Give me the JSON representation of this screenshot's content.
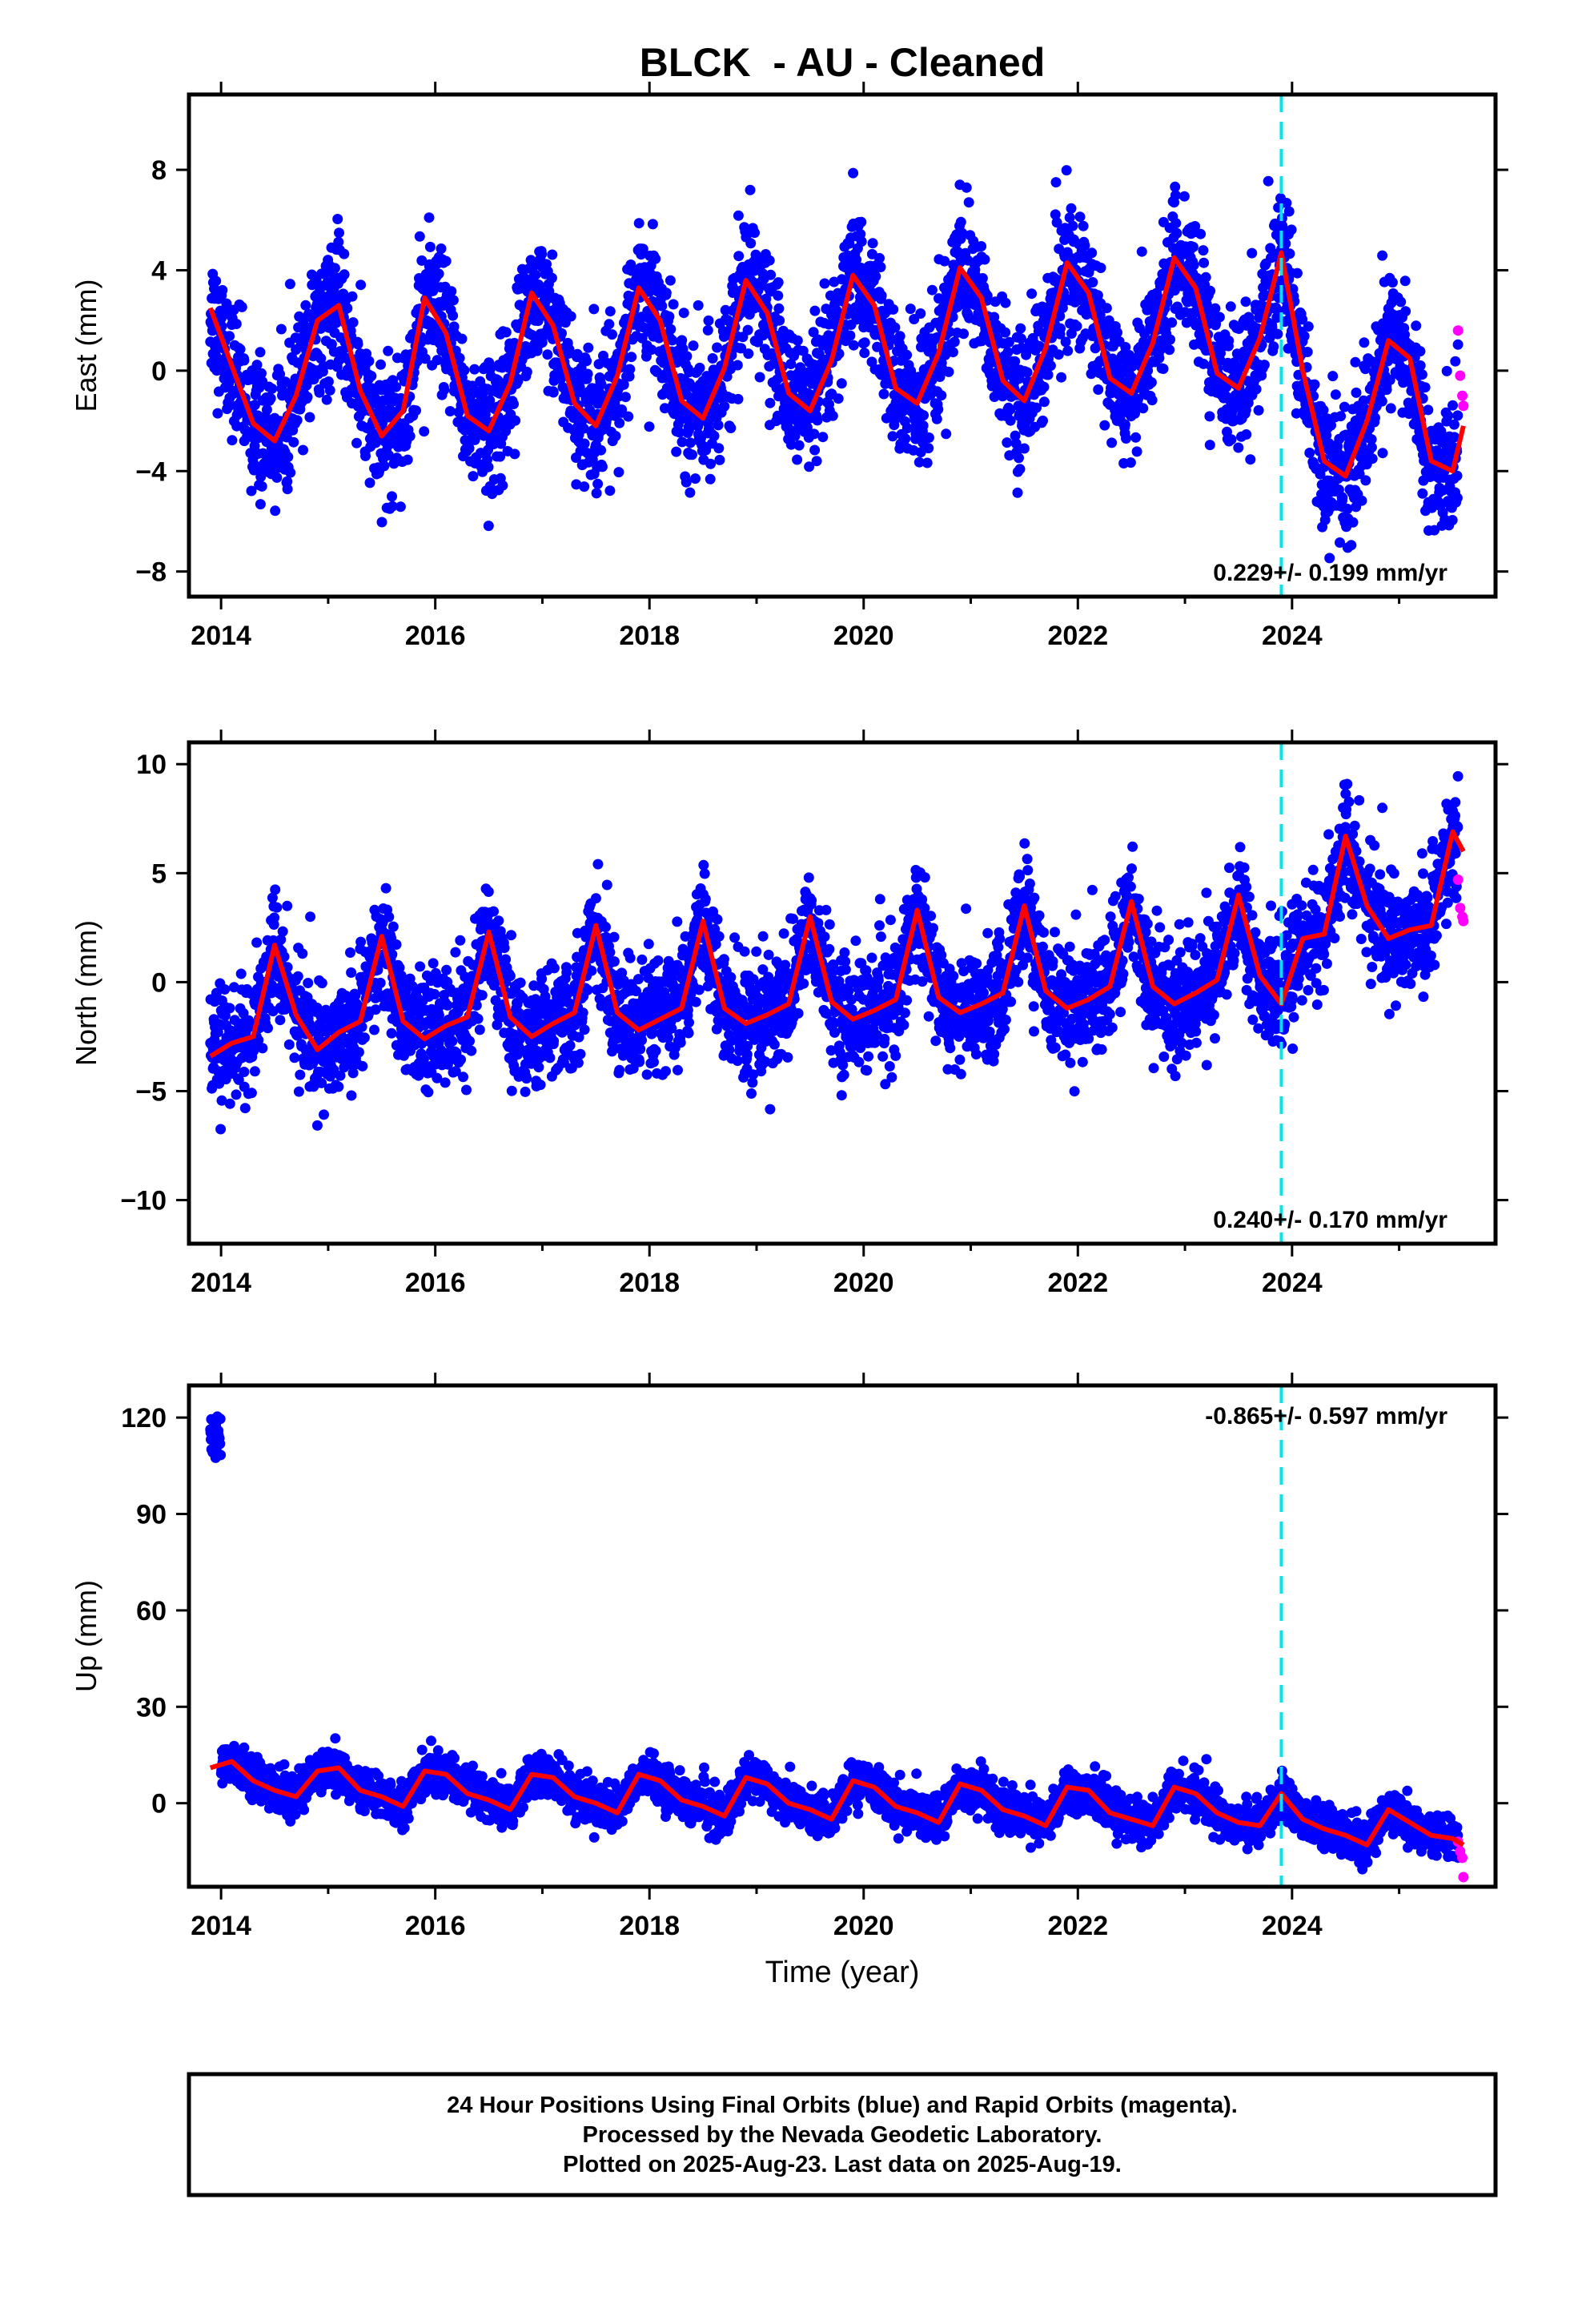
{
  "title": "BLCK  - AU - Cleaned",
  "x_axis_label": "Time (year)",
  "colors": {
    "final_orbits": "#0000ff",
    "rapid_orbits": "#ff00ff",
    "model_fit": "#ff0000",
    "event_line": "#00e5ee"
  },
  "event_year": 2023.9,
  "chart_data": [
    {
      "type": "scatter",
      "component": "east",
      "ylabel": "East (mm)",
      "xlim": [
        2013.7,
        2025.9
      ],
      "ylim": [
        -9,
        11
      ],
      "x_ticks": [
        2014,
        2016,
        2018,
        2020,
        2022,
        2024
      ],
      "y_ticks": [
        -8,
        -4,
        0,
        4,
        8
      ],
      "rate_label": "0.229+/- 0.199 mm/yr",
      "rate_position": "bottom-right",
      "model": {
        "x": [
          2013.9,
          2014.1,
          2014.3,
          2014.5,
          2014.7,
          2014.9,
          2015.1,
          2015.3,
          2015.5,
          2015.7,
          2015.9,
          2016.1,
          2016.3,
          2016.5,
          2016.7,
          2016.9,
          2017.1,
          2017.3,
          2017.5,
          2017.7,
          2017.9,
          2018.1,
          2018.3,
          2018.5,
          2018.7,
          2018.9,
          2019.1,
          2019.3,
          2019.5,
          2019.7,
          2019.9,
          2020.1,
          2020.3,
          2020.5,
          2020.7,
          2020.9,
          2021.1,
          2021.3,
          2021.5,
          2021.7,
          2021.9,
          2022.1,
          2022.3,
          2022.5,
          2022.7,
          2022.9,
          2023.1,
          2023.3,
          2023.5,
          2023.7,
          2023.9,
          2024.1,
          2024.3,
          2024.5,
          2024.7,
          2024.9,
          2025.1,
          2025.3,
          2025.5,
          2025.6
        ],
        "y": [
          2.5,
          0.2,
          -2.1,
          -2.8,
          -1.0,
          2.0,
          2.6,
          -0.8,
          -2.6,
          -1.6,
          2.9,
          1.5,
          -1.8,
          -2.4,
          -0.5,
          3.1,
          1.8,
          -1.3,
          -2.2,
          -0.2,
          3.3,
          2.0,
          -1.2,
          -1.9,
          0.1,
          3.6,
          2.3,
          -0.9,
          -1.6,
          0.4,
          3.8,
          2.6,
          -0.7,
          -1.3,
          0.7,
          4.1,
          2.9,
          -0.4,
          -1.2,
          0.9,
          4.3,
          3.1,
          -0.3,
          -0.9,
          1.1,
          4.5,
          3.3,
          -0.1,
          -0.7,
          1.3,
          4.7,
          0.0,
          -3.6,
          -4.2,
          -2.0,
          1.2,
          0.5,
          -3.6,
          -4.0,
          -2.2
        ]
      },
      "rapid": {
        "x": [
          2025.55,
          2025.57,
          2025.59,
          2025.6
        ],
        "y": [
          1.6,
          -0.2,
          -1.0,
          -1.4
        ]
      }
    },
    {
      "type": "scatter",
      "component": "north",
      "ylabel": "North (mm)",
      "xlim": [
        2013.7,
        2025.9
      ],
      "ylim": [
        -12,
        11
      ],
      "x_ticks": [
        2014,
        2016,
        2018,
        2020,
        2022,
        2024
      ],
      "y_ticks": [
        -10,
        -5,
        0,
        5,
        10
      ],
      "rate_label": "0.240+/- 0.170 mm/yr",
      "rate_position": "bottom-right",
      "model": {
        "x": [
          2013.9,
          2014.1,
          2014.3,
          2014.5,
          2014.7,
          2014.9,
          2015.1,
          2015.3,
          2015.5,
          2015.7,
          2015.9,
          2016.1,
          2016.3,
          2016.5,
          2016.7,
          2016.9,
          2017.1,
          2017.3,
          2017.5,
          2017.7,
          2017.9,
          2018.1,
          2018.3,
          2018.5,
          2018.7,
          2018.9,
          2019.1,
          2019.3,
          2019.5,
          2019.7,
          2019.9,
          2020.1,
          2020.3,
          2020.5,
          2020.7,
          2020.9,
          2021.1,
          2021.3,
          2021.5,
          2021.7,
          2021.9,
          2022.1,
          2022.3,
          2022.5,
          2022.7,
          2022.9,
          2023.1,
          2023.3,
          2023.5,
          2023.7,
          2023.9,
          2024.1,
          2024.3,
          2024.5,
          2024.7,
          2024.9,
          2025.1,
          2025.3,
          2025.5,
          2025.6
        ],
        "y": [
          -3.4,
          -2.8,
          -2.5,
          1.7,
          -1.5,
          -3.1,
          -2.3,
          -1.8,
          2.1,
          -1.8,
          -2.6,
          -2.0,
          -1.6,
          2.3,
          -1.6,
          -2.5,
          -1.9,
          -1.4,
          2.6,
          -1.4,
          -2.2,
          -1.7,
          -1.2,
          2.8,
          -1.2,
          -1.9,
          -1.5,
          -1.0,
          3.0,
          -0.9,
          -1.7,
          -1.3,
          -0.8,
          3.3,
          -0.7,
          -1.4,
          -1.0,
          -0.5,
          3.5,
          -0.4,
          -1.2,
          -0.8,
          -0.2,
          3.7,
          -0.2,
          -1.0,
          -0.5,
          0.1,
          4.0,
          0.3,
          -1.0,
          2.0,
          2.2,
          6.7,
          3.5,
          2.0,
          2.4,
          2.6,
          6.9,
          6.0
        ]
      },
      "rapid": {
        "x": [
          2025.55,
          2025.57,
          2025.59,
          2025.6
        ],
        "y": [
          4.7,
          3.4,
          3.0,
          2.8
        ]
      }
    },
    {
      "type": "scatter",
      "component": "up",
      "ylabel": "Up (mm)",
      "xlim": [
        2013.7,
        2025.9
      ],
      "ylim": [
        -26,
        130
      ],
      "x_ticks": [
        2014,
        2016,
        2018,
        2020,
        2022,
        2024
      ],
      "y_ticks": [
        0,
        30,
        60,
        90,
        120
      ],
      "rate_label": "-0.865+/- 0.597 mm/yr",
      "rate_position": "top-right",
      "model": {
        "x": [
          2013.9,
          2014.1,
          2014.3,
          2014.5,
          2014.7,
          2014.9,
          2015.1,
          2015.3,
          2015.5,
          2015.7,
          2015.9,
          2016.1,
          2016.3,
          2016.5,
          2016.7,
          2016.9,
          2017.1,
          2017.3,
          2017.5,
          2017.7,
          2017.9,
          2018.1,
          2018.3,
          2018.5,
          2018.7,
          2018.9,
          2019.1,
          2019.3,
          2019.5,
          2019.7,
          2019.9,
          2020.1,
          2020.3,
          2020.5,
          2020.7,
          2020.9,
          2021.1,
          2021.3,
          2021.5,
          2021.7,
          2021.9,
          2022.1,
          2022.3,
          2022.5,
          2022.7,
          2022.9,
          2023.1,
          2023.3,
          2023.5,
          2023.7,
          2023.9,
          2024.1,
          2024.3,
          2024.5,
          2024.7,
          2024.9,
          2025.1,
          2025.3,
          2025.5,
          2025.6
        ],
        "y": [
          11,
          13,
          7,
          4,
          2,
          10,
          11,
          4,
          2,
          -1,
          10,
          9,
          3,
          1,
          -2,
          9,
          8,
          2,
          0,
          -3,
          9,
          7,
          1,
          -1,
          -4,
          8,
          6,
          0,
          -2,
          -5,
          7,
          5,
          -1,
          -3,
          -6,
          6,
          4,
          -2,
          -4,
          -7,
          5,
          4,
          -3,
          -5,
          -7,
          5,
          3,
          -3,
          -6,
          -7,
          3,
          -5,
          -8,
          -10,
          -13,
          -2,
          -6,
          -10,
          -11,
          -13
        ]
      },
      "rapid": {
        "x": [
          2025.55,
          2025.57,
          2025.59,
          2025.6
        ],
        "y": [
          -12,
          -15,
          -17,
          -23
        ]
      }
    }
  ],
  "footer": {
    "line1": "24 Hour Positions Using Final Orbits (blue) and Rapid Orbits (magenta).",
    "line2": "Processed by the Nevada Geodetic Laboratory.",
    "line3": "Plotted on 2025-Aug-23. Last data on 2025-Aug-19."
  }
}
